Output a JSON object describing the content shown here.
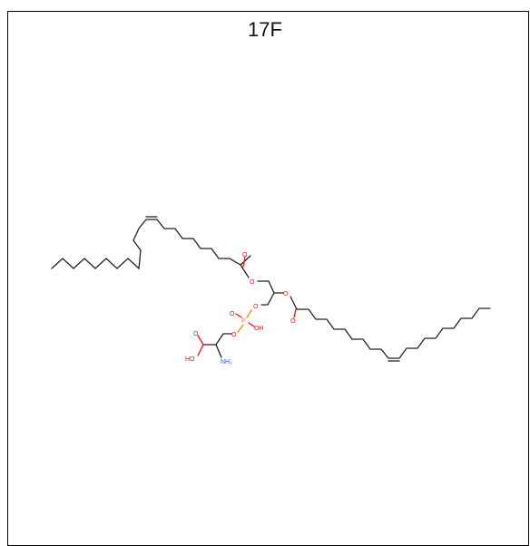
{
  "title": "17F",
  "molecule": {
    "atom_labels": {
      "o_carbonyl_1": "O",
      "o_ester_1": "O",
      "o_ester_2": "O",
      "o_carbonyl_2": "O",
      "o_phosphate_bridge_1": "O",
      "p": "P",
      "o_p_double": "O",
      "o_p_hydroxyl": "OH",
      "o_phosphate_bridge_2": "O",
      "o_acid_carbonyl": "O",
      "o_acid_hydroxyl": "HO",
      "n_amine": "NH₂"
    },
    "colors": {
      "bond": "#222222",
      "oxygen": "#ff0d0d",
      "phosphorus": "#ff8000",
      "nitrogen": "#3050f8"
    }
  }
}
